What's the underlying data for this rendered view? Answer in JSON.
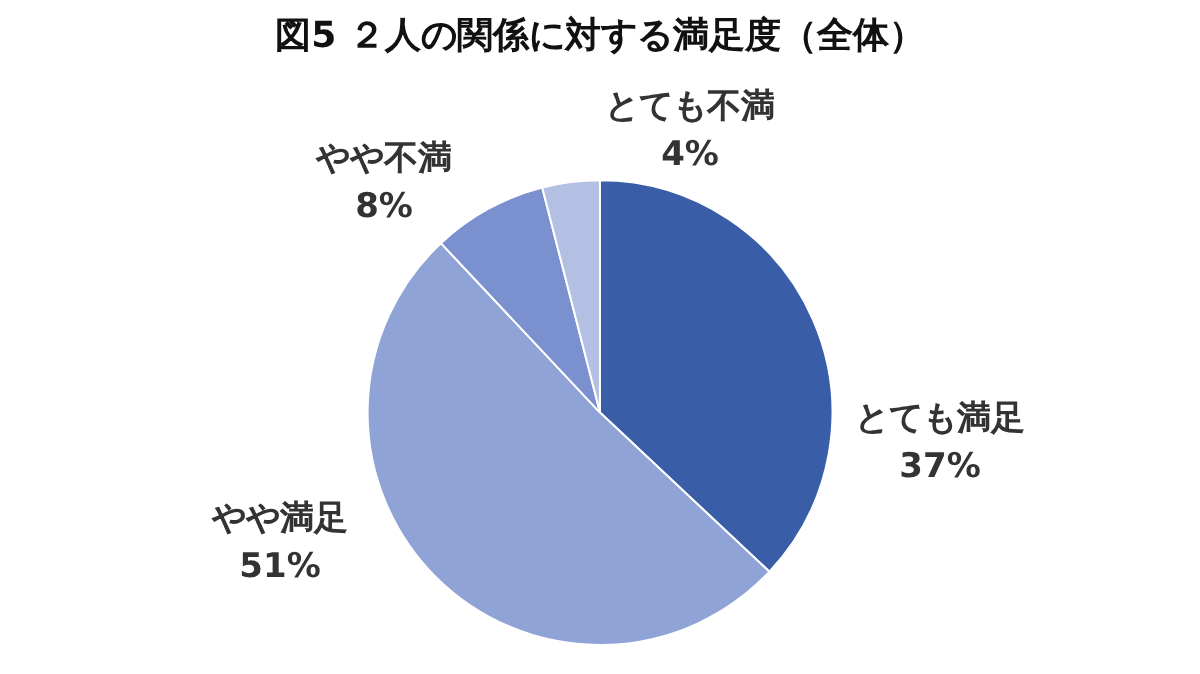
{
  "chart_data": {
    "type": "pie",
    "title": "図5 ２人の関係に対する満足度（全体）",
    "categories": [
      "とても満足",
      "やや満足",
      "やや不満",
      "とても不満"
    ],
    "values": [
      37,
      51,
      8,
      4
    ],
    "colors": [
      "#3a5da8",
      "#8fa3d6",
      "#7b90cf",
      "#b3c0e3"
    ],
    "value_labels": [
      "37%",
      "51%",
      "8%",
      "4%"
    ],
    "legend": false
  }
}
